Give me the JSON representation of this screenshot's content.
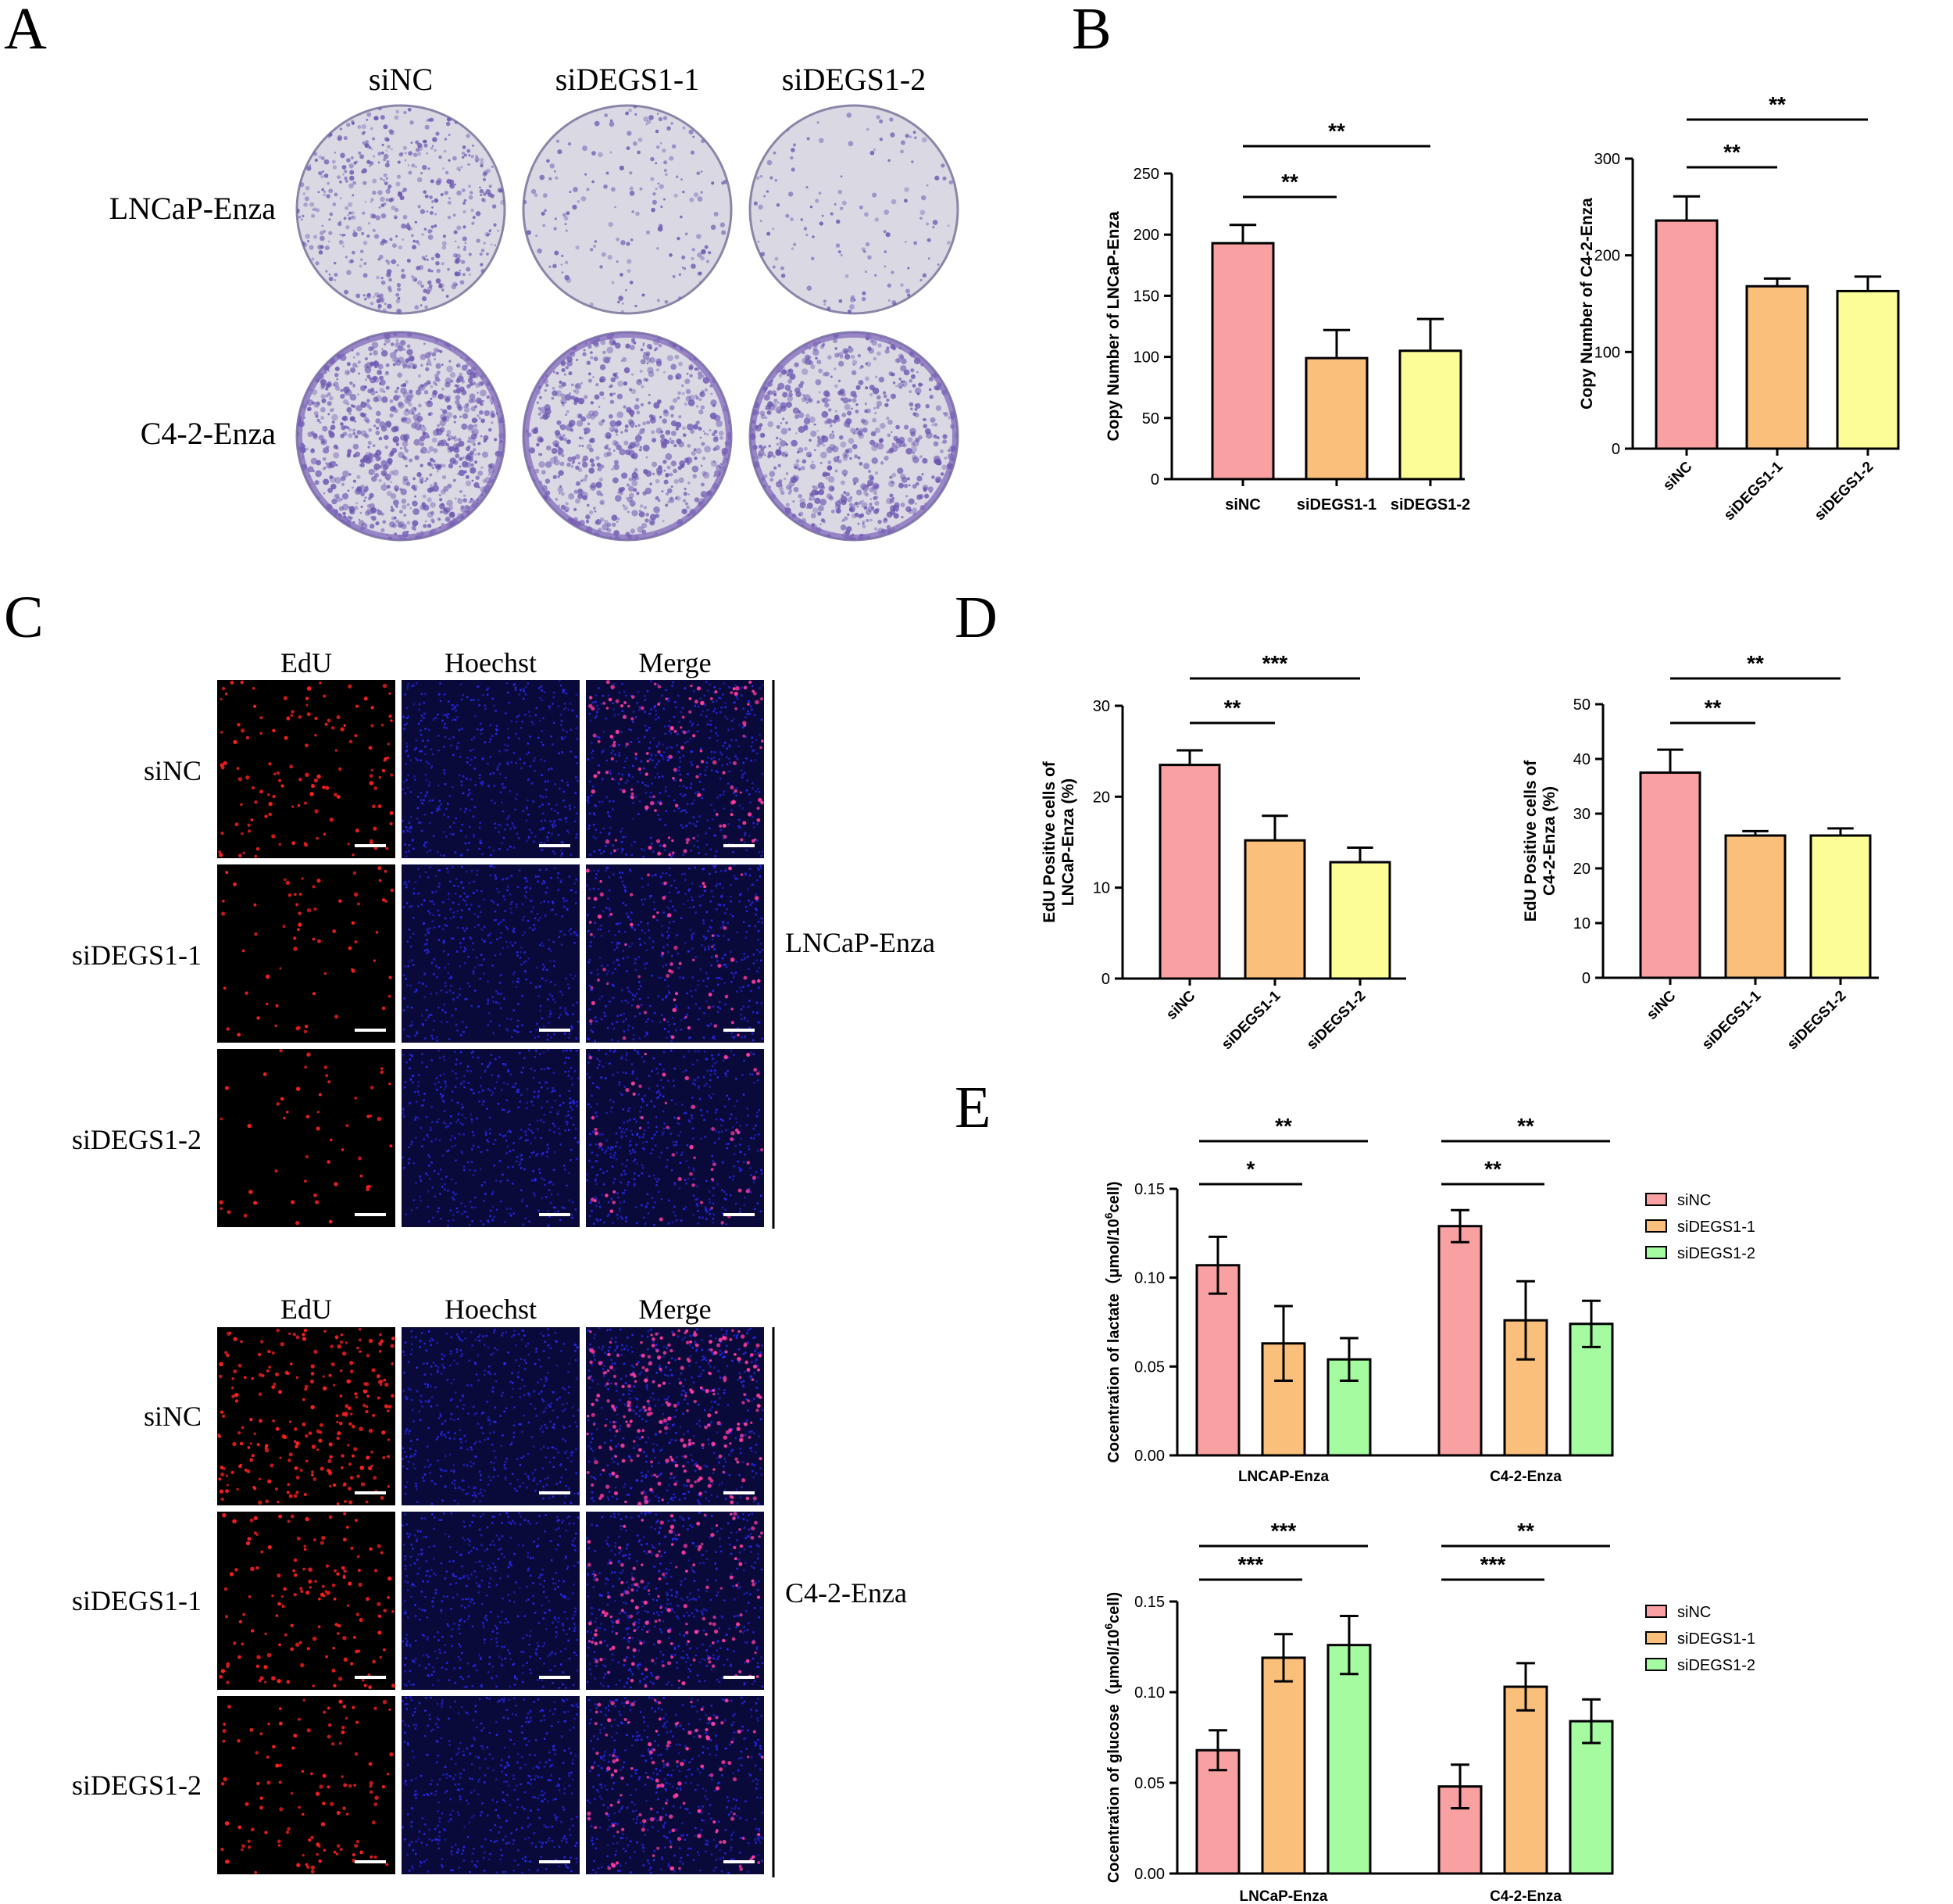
{
  "panels": {
    "A": {
      "letter": "A",
      "columns": [
        "siNC",
        "siDEGS1-1",
        "siDEGS1-2"
      ],
      "rows": [
        "LNCaP-Enza",
        "C4-2-Enza"
      ],
      "colony_density": [
        [
          0.55,
          0.2,
          0.15
        ],
        [
          0.95,
          0.7,
          0.75
        ]
      ]
    },
    "B": {
      "letter": "B"
    },
    "C": {
      "letter": "C",
      "channels": [
        "EdU",
        "Hoechst",
        "Merge"
      ],
      "conditions": [
        "siNC",
        "siDEGS1-1",
        "siDEGS1-2"
      ],
      "groups": [
        "LNCaP-Enza",
        "C4-2-Enza"
      ],
      "edu_density": [
        [
          0.5,
          0.25,
          0.2
        ],
        [
          0.9,
          0.55,
          0.45
        ]
      ]
    },
    "D": {
      "letter": "D"
    },
    "E": {
      "letter": "E"
    }
  },
  "colors": {
    "siNC": "#f9a1a2",
    "siDEGS1-1": "#fbbf7c",
    "siDEGS1-2_yellow": "#fdfd98",
    "siDEGS1-2_green": "#a5fba0",
    "edu": "#ff2020",
    "hoechst": "#2a2aff"
  },
  "chart_data": [
    {
      "id": "B1",
      "type": "bar",
      "categories": [
        "siNC",
        "siDEGS1-1",
        "siDEGS1-2"
      ],
      "values": [
        193,
        99,
        105
      ],
      "errors": [
        15,
        23,
        26
      ],
      "ylabel": "Copy Number of LNCaP-Enza",
      "ylim": [
        0,
        250
      ],
      "yticks": [
        0,
        50,
        100,
        150,
        200,
        250
      ],
      "rotate_labels": false,
      "significance": [
        {
          "from": 0,
          "to": 1,
          "label": "**"
        },
        {
          "from": 0,
          "to": 2,
          "label": "**"
        }
      ]
    },
    {
      "id": "B2",
      "type": "bar",
      "categories": [
        "siNC",
        "siDEGS1-1",
        "siDEGS1-2"
      ],
      "values": [
        236,
        168,
        163
      ],
      "errors": [
        25,
        8,
        15
      ],
      "ylabel": "Copy Number of C4-2-Enza",
      "ylim": [
        0,
        300
      ],
      "yticks": [
        0,
        100,
        200,
        300
      ],
      "rotate_labels": true,
      "significance": [
        {
          "from": 0,
          "to": 1,
          "label": "**"
        },
        {
          "from": 0,
          "to": 2,
          "label": "**"
        }
      ]
    },
    {
      "id": "D1",
      "type": "bar",
      "categories": [
        "siNC",
        "siDEGS1-1",
        "siDEGS1-2"
      ],
      "values": [
        23.5,
        15.2,
        12.8
      ],
      "errors": [
        1.6,
        2.7,
        1.6
      ],
      "ylabel": [
        "EdU Positive cells of",
        "LNCaP-Enza (%)"
      ],
      "ylim": [
        0,
        30
      ],
      "yticks": [
        0,
        10,
        20,
        30
      ],
      "rotate_labels": true,
      "significance": [
        {
          "from": 0,
          "to": 1,
          "label": "**"
        },
        {
          "from": 0,
          "to": 2,
          "label": "***"
        }
      ]
    },
    {
      "id": "D2",
      "type": "bar",
      "categories": [
        "siNC",
        "siDEGS1-1",
        "siDEGS1-2"
      ],
      "values": [
        37.5,
        26.0,
        26.0
      ],
      "errors": [
        4.2,
        0.8,
        1.3
      ],
      "ylabel": [
        "EdU Positive cells of",
        "C4-2-Enza (%)"
      ],
      "ylim": [
        0,
        50
      ],
      "yticks": [
        0,
        10,
        20,
        30,
        40,
        50
      ],
      "rotate_labels": true,
      "significance": [
        {
          "from": 0,
          "to": 1,
          "label": "**"
        },
        {
          "from": 0,
          "to": 2,
          "label": "**"
        }
      ]
    },
    {
      "id": "E1",
      "type": "bar",
      "categories": [
        "LNCAP-Enza",
        "C4-2-Enza"
      ],
      "series": [
        {
          "name": "siNC",
          "values": [
            0.107,
            0.129
          ],
          "errors": [
            0.016,
            0.009
          ]
        },
        {
          "name": "siDEGS1-1",
          "values": [
            0.063,
            0.076
          ],
          "errors": [
            0.021,
            0.022
          ]
        },
        {
          "name": "siDEGS1-2",
          "values": [
            0.054,
            0.074
          ],
          "errors": [
            0.012,
            0.013
          ]
        }
      ],
      "ylabel_main": "Cocentration of lactate（μmol/10",
      "ylabel_sup": "6",
      "ylabel_end": "cell)",
      "ylim": [
        0,
        0.15
      ],
      "yticks": [
        "0.00",
        "0.05",
        "0.10",
        "0.15"
      ],
      "legend": "right",
      "significance": [
        {
          "group": 0,
          "from": 0,
          "to": 1,
          "label": "*"
        },
        {
          "group": 0,
          "from": 0,
          "to": 2,
          "label": "**"
        },
        {
          "group": 1,
          "from": 0,
          "to": 1,
          "label": "**"
        },
        {
          "group": 1,
          "from": 0,
          "to": 2,
          "label": "**"
        }
      ]
    },
    {
      "id": "E2",
      "type": "bar",
      "categories": [
        "LNCaP-Enza",
        "C4-2-Enza"
      ],
      "series": [
        {
          "name": "siNC",
          "values": [
            0.068,
            0.048
          ],
          "errors": [
            0.011,
            0.012
          ]
        },
        {
          "name": "siDEGS1-1",
          "values": [
            0.119,
            0.103
          ],
          "errors": [
            0.013,
            0.013
          ]
        },
        {
          "name": "siDEGS1-2",
          "values": [
            0.126,
            0.084
          ],
          "errors": [
            0.016,
            0.012
          ]
        }
      ],
      "ylabel_main": "Cocentration of glucose（μmol/10",
      "ylabel_sup": "6",
      "ylabel_end": "cell)",
      "ylim": [
        0,
        0.15
      ],
      "yticks": [
        "0.00",
        "0.05",
        "0.10",
        "0.15"
      ],
      "legend": "right",
      "significance": [
        {
          "group": 0,
          "from": 0,
          "to": 1,
          "label": "***"
        },
        {
          "group": 0,
          "from": 0,
          "to": 2,
          "label": "***"
        },
        {
          "group": 1,
          "from": 0,
          "to": 1,
          "label": "***"
        },
        {
          "group": 1,
          "from": 0,
          "to": 2,
          "label": "**"
        }
      ]
    }
  ]
}
